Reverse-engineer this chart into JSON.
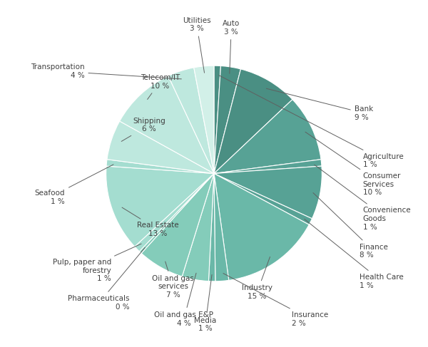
{
  "sectors": [
    {
      "label": "Agriculture",
      "pct": 1,
      "value": 1
    },
    {
      "label": "Auto",
      "pct": 3,
      "value": 3
    },
    {
      "label": "Bank",
      "pct": 9,
      "value": 9
    },
    {
      "label": "Consumer\nServices",
      "pct": 10,
      "value": 10
    },
    {
      "label": "Convenience\nGoods",
      "pct": 1,
      "value": 1
    },
    {
      "label": "Finance",
      "pct": 8,
      "value": 8
    },
    {
      "label": "Health Care",
      "pct": 1,
      "value": 1
    },
    {
      "label": "Industry",
      "pct": 15,
      "value": 15
    },
    {
      "label": "Insurance",
      "pct": 2,
      "value": 2
    },
    {
      "label": "Media",
      "pct": 1,
      "value": 1
    },
    {
      "label": "Oil and gas E&P",
      "pct": 4,
      "value": 4
    },
    {
      "label": "Oil and gas\nservices",
      "pct": 7,
      "value": 7
    },
    {
      "label": "Pharmaceuticals",
      "pct": 0,
      "value": 0.4
    },
    {
      "label": "Pulp, paper and\nforestry",
      "pct": 1,
      "value": 1
    },
    {
      "label": "Real Estate",
      "pct": 13,
      "value": 13
    },
    {
      "label": "Seafood",
      "pct": 1,
      "value": 1
    },
    {
      "label": "Shipping",
      "pct": 6,
      "value": 6
    },
    {
      "label": "Telecom/IT",
      "pct": 10,
      "value": 10
    },
    {
      "label": "Transportation",
      "pct": 4,
      "value": 4
    },
    {
      "label": "Utilities",
      "pct": 3,
      "value": 3
    }
  ],
  "colors": [
    "#4a8f83",
    "#4a8f83",
    "#4a8f83",
    "#57a295",
    "#57a295",
    "#57a295",
    "#57a295",
    "#6ab8a8",
    "#6ab8a8",
    "#6ab8a8",
    "#84ccba",
    "#84ccba",
    "#84ccba",
    "#a4ddd0",
    "#a4ddd0",
    "#a4ddd0",
    "#bee8de",
    "#bee8de",
    "#bee8de",
    "#d2f0e8"
  ],
  "label_positions": {
    "Agriculture": [
      1.38,
      0.12,
      "left",
      0.82,
      0.09
    ],
    "Auto": [
      0.16,
      1.35,
      "center",
      0.1,
      0.8
    ],
    "Bank": [
      1.3,
      0.56,
      "left",
      0.77,
      0.33
    ],
    "Consumer\nServices": [
      1.38,
      -0.1,
      "left",
      0.77,
      -0.06
    ],
    "Convenience\nGoods": [
      1.38,
      -0.42,
      "left",
      0.93,
      -0.28
    ],
    "Finance": [
      1.35,
      -0.72,
      "left",
      0.85,
      -0.45
    ],
    "Health Care": [
      1.35,
      -1.0,
      "left",
      0.8,
      -0.59
    ],
    "Industry": [
      0.4,
      -1.1,
      "center",
      0.3,
      -0.82
    ],
    "Insurance": [
      0.72,
      -1.35,
      "left",
      0.48,
      -0.9
    ],
    "Media": [
      -0.08,
      -1.4,
      "center",
      -0.05,
      -0.93
    ],
    "Oil and gas E&P": [
      -0.28,
      -1.35,
      "center",
      -0.19,
      -0.9
    ],
    "Oil and gas\nservices": [
      -0.38,
      -1.05,
      "center",
      -0.28,
      -0.78
    ],
    "Pharmaceuticals": [
      -0.78,
      -1.2,
      "right",
      -0.52,
      -0.8
    ],
    "Pulp, paper and\nforestry": [
      -0.95,
      -0.9,
      "right",
      -0.63,
      -0.6
    ],
    "Real Estate": [
      -0.52,
      -0.52,
      "center",
      -0.39,
      -0.39
    ],
    "Seafood": [
      -1.38,
      -0.22,
      "right",
      -0.92,
      -0.15
    ],
    "Shipping": [
      -0.6,
      0.45,
      "center",
      -0.45,
      0.34
    ],
    "Telecom/IT": [
      -0.5,
      0.85,
      "center",
      -0.37,
      0.63
    ],
    "Transportation": [
      -1.2,
      0.95,
      "right",
      -0.8,
      0.63
    ],
    "Utilities": [
      -0.16,
      1.38,
      "center",
      -0.1,
      0.92
    ]
  },
  "background_color": "#ffffff"
}
